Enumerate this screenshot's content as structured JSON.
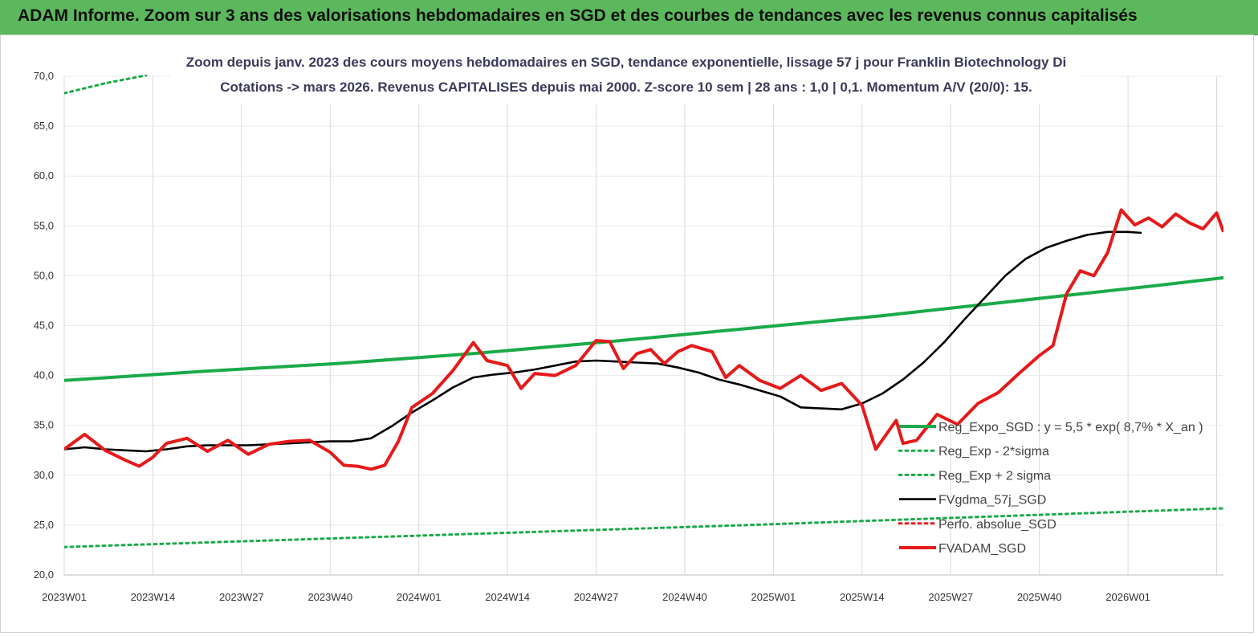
{
  "header": {
    "title": "ADAM Informe. Zoom sur 3 ans des valorisations hebdomadaires en SGD et des courbes de tendances avec les revenus connus capitalisés"
  },
  "chart_data": {
    "type": "line",
    "title_line1": "Zoom depuis janv. 2023 des cours moyens hebdomadaires en SGD, tendance exponentielle, lissage 57 j pour Franklin Biotechnology Di",
    "title_line2": "Cotations -> mars 2026. Revenus CAPITALISES depuis mai 2000. Z-score 10 sem | 28 ans : 1,0 | 0,1. Momentum A/V (20/0): 15.",
    "ylim": [
      20,
      70
    ],
    "y_ticks": [
      "20,0",
      "25,0",
      "30,0",
      "35,0",
      "40,0",
      "45,0",
      "50,0",
      "55,0",
      "60,0",
      "65,0",
      "70,0"
    ],
    "x_ticks": [
      "2023W01",
      "2023W14",
      "2023W27",
      "2023W40",
      "2024W01",
      "2024W14",
      "2024W27",
      "2024W40",
      "2025W01",
      "2025W14",
      "2025W27",
      "2025W40",
      "2026W01"
    ],
    "week_count": 171,
    "grid": "vertical",
    "legend_position": "lower-right",
    "series": [
      {
        "name": "Reg_Expo_SGD : y = 5,5 * exp( 8,7% * X_an )",
        "color": "#1aaa4a",
        "style": "solid-thick",
        "points": [
          [
            0,
            39.5
          ],
          [
            20,
            40.4
          ],
          [
            40,
            41.2
          ],
          [
            60,
            42.2
          ],
          [
            80,
            43.4
          ],
          [
            100,
            44.7
          ],
          [
            120,
            46.0
          ],
          [
            140,
            47.5
          ],
          [
            160,
            49.0
          ],
          [
            180,
            50.6
          ],
          [
            200,
            51.8
          ],
          [
            220,
            53.0
          ],
          [
            240,
            54.2
          ],
          [
            260,
            55.5
          ],
          [
            280,
            56.9
          ],
          [
            300,
            58.4
          ],
          [
            320,
            60.0
          ],
          [
            340,
            61.7
          ],
          [
            355,
            63.0
          ]
        ]
      },
      {
        "name": "Reg_Exp - 2*sigma",
        "color": "#1aaa4a",
        "style": "dotted",
        "points": [
          [
            0,
            22.8
          ],
          [
            100,
            25.0
          ],
          [
            200,
            27.4
          ],
          [
            300,
            30.0
          ]
        ]
      },
      {
        "name": "Reg_Exp + 2 sigma",
        "color": "#1aaa4a",
        "style": "dotted",
        "points": [
          [
            0,
            68.3
          ],
          [
            6,
            69.3
          ],
          [
            12,
            70.1
          ]
        ]
      },
      {
        "name": "FVgdma_57j_SGD",
        "color": "#000000",
        "style": "solid",
        "points": [
          [
            0,
            32.6
          ],
          [
            3,
            32.8
          ],
          [
            6,
            32.6
          ],
          [
            9,
            32.5
          ],
          [
            12,
            32.4
          ],
          [
            15,
            32.6
          ],
          [
            18,
            32.9
          ],
          [
            21,
            33.0
          ],
          [
            24,
            33.0
          ],
          [
            27,
            33.0
          ],
          [
            30,
            33.1
          ],
          [
            33,
            33.2
          ],
          [
            36,
            33.3
          ],
          [
            39,
            33.4
          ],
          [
            42,
            33.4
          ],
          [
            45,
            33.7
          ],
          [
            48,
            34.9
          ],
          [
            51,
            36.3
          ],
          [
            54,
            37.5
          ],
          [
            57,
            38.8
          ],
          [
            60,
            39.8
          ],
          [
            63,
            40.1
          ],
          [
            66,
            40.3
          ],
          [
            69,
            40.6
          ],
          [
            72,
            41.0
          ],
          [
            75,
            41.4
          ],
          [
            78,
            41.5
          ],
          [
            81,
            41.4
          ],
          [
            84,
            41.3
          ],
          [
            87,
            41.2
          ],
          [
            90,
            40.8
          ],
          [
            93,
            40.3
          ],
          [
            96,
            39.6
          ],
          [
            99,
            39.1
          ],
          [
            102,
            38.5
          ],
          [
            105,
            37.9
          ],
          [
            108,
            36.8
          ],
          [
            111,
            36.7
          ],
          [
            114,
            36.6
          ],
          [
            117,
            37.2
          ],
          [
            120,
            38.2
          ],
          [
            123,
            39.6
          ],
          [
            126,
            41.3
          ],
          [
            129,
            43.3
          ],
          [
            132,
            45.6
          ],
          [
            135,
            47.8
          ],
          [
            138,
            50.0
          ],
          [
            141,
            51.7
          ],
          [
            144,
            52.8
          ],
          [
            147,
            53.5
          ],
          [
            150,
            54.1
          ],
          [
            153,
            54.4
          ],
          [
            156,
            54.4
          ],
          [
            158,
            54.3
          ]
        ]
      },
      {
        "name": "Perfo. absolue_SGD",
        "color": "#dd2222",
        "style": "dotted",
        "points": []
      },
      {
        "name": "FVADAM_SGD",
        "color": "#e51a1a",
        "style": "solid-thick",
        "points": [
          [
            0,
            32.6
          ],
          [
            3,
            34.1
          ],
          [
            6,
            32.5
          ],
          [
            9,
            31.5
          ],
          [
            11,
            30.9
          ],
          [
            13,
            31.8
          ],
          [
            15,
            33.2
          ],
          [
            18,
            33.7
          ],
          [
            21,
            32.4
          ],
          [
            24,
            33.5
          ],
          [
            27,
            32.1
          ],
          [
            30,
            33.1
          ],
          [
            33,
            33.4
          ],
          [
            36,
            33.5
          ],
          [
            39,
            32.3
          ],
          [
            41,
            31.0
          ],
          [
            43,
            30.9
          ],
          [
            45,
            30.6
          ],
          [
            47,
            31.0
          ],
          [
            49,
            33.4
          ],
          [
            51,
            36.8
          ],
          [
            54,
            38.2
          ],
          [
            57,
            40.5
          ],
          [
            60,
            43.3
          ],
          [
            62,
            41.5
          ],
          [
            65,
            41.0
          ],
          [
            67,
            38.7
          ],
          [
            69,
            40.2
          ],
          [
            72,
            40.0
          ],
          [
            75,
            41.0
          ],
          [
            78,
            43.5
          ],
          [
            80,
            43.4
          ],
          [
            82,
            40.7
          ],
          [
            84,
            42.2
          ],
          [
            86,
            42.6
          ],
          [
            88,
            41.2
          ],
          [
            90,
            42.4
          ],
          [
            92,
            43.0
          ],
          [
            95,
            42.4
          ],
          [
            97,
            39.8
          ],
          [
            99,
            41.0
          ],
          [
            102,
            39.5
          ],
          [
            105,
            38.7
          ],
          [
            108,
            40.0
          ],
          [
            111,
            38.5
          ],
          [
            114,
            39.2
          ],
          [
            117,
            37.0
          ],
          [
            119,
            32.6
          ],
          [
            122,
            35.5
          ],
          [
            123,
            33.2
          ],
          [
            125,
            33.5
          ],
          [
            128,
            36.1
          ],
          [
            131,
            35.1
          ],
          [
            134,
            37.2
          ],
          [
            137,
            38.3
          ],
          [
            140,
            40.2
          ],
          [
            143,
            42.0
          ],
          [
            145,
            43.0
          ],
          [
            147,
            48.2
          ],
          [
            149,
            50.5
          ],
          [
            151,
            50.0
          ],
          [
            153,
            52.3
          ],
          [
            155,
            56.6
          ],
          [
            157,
            55.1
          ],
          [
            159,
            55.8
          ],
          [
            161,
            54.9
          ],
          [
            163,
            56.2
          ],
          [
            165,
            55.3
          ],
          [
            167,
            54.7
          ],
          [
            169,
            56.3
          ],
          [
            170,
            54.4
          ]
        ]
      }
    ]
  }
}
